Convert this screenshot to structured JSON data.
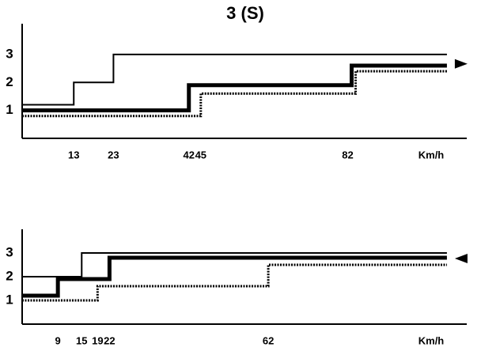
{
  "chart_data": [
    {
      "type": "line",
      "title": "3 (S)",
      "xlabel": "Km/h",
      "xlim": [
        0,
        112
      ],
      "ylim": [
        0,
        4.1
      ],
      "xticks": [
        13,
        23,
        42,
        45,
        82
      ],
      "yticks": [
        1,
        2,
        3
      ],
      "direction": "right",
      "series": [
        {
          "color": "#000000",
          "width": 2,
          "dash": false,
          "x": [
            0,
            13,
            13,
            23,
            23,
            107
          ],
          "values": [
            1.2,
            1.2,
            2,
            2,
            3,
            3
          ]
        },
        {
          "color": "#000000",
          "width": 5,
          "dash": false,
          "x": [
            0,
            42,
            42,
            83,
            83,
            107
          ],
          "values": [
            1.0,
            1.0,
            1.9,
            1.9,
            2.6,
            2.6
          ]
        },
        {
          "color": "#000000",
          "width": 3,
          "dash": true,
          "x": [
            0,
            45,
            45,
            84,
            84,
            107
          ],
          "values": [
            0.8,
            0.8,
            1.6,
            1.6,
            2.4,
            2.4
          ]
        }
      ]
    },
    {
      "type": "line",
      "xlabel": "Km/h",
      "xlim": [
        0,
        112
      ],
      "ylim": [
        0,
        4
      ],
      "xticks": [
        9,
        15,
        19,
        22,
        62
      ],
      "yticks": [
        1,
        2,
        3
      ],
      "direction": "left",
      "series": [
        {
          "color": "#000000",
          "width": 2,
          "dash": false,
          "x": [
            0,
            15,
            15,
            107
          ],
          "values": [
            2,
            2,
            3,
            3
          ]
        },
        {
          "color": "#000000",
          "width": 5,
          "dash": false,
          "x": [
            0,
            9,
            9,
            22,
            22,
            107
          ],
          "values": [
            1.2,
            1.2,
            1.9,
            1.9,
            2.8,
            2.8
          ]
        },
        {
          "color": "#000000",
          "width": 3,
          "dash": true,
          "x": [
            0,
            19,
            19,
            62,
            62,
            107
          ],
          "values": [
            1.0,
            1.0,
            1.6,
            1.6,
            2.5,
            2.5
          ]
        }
      ]
    }
  ]
}
